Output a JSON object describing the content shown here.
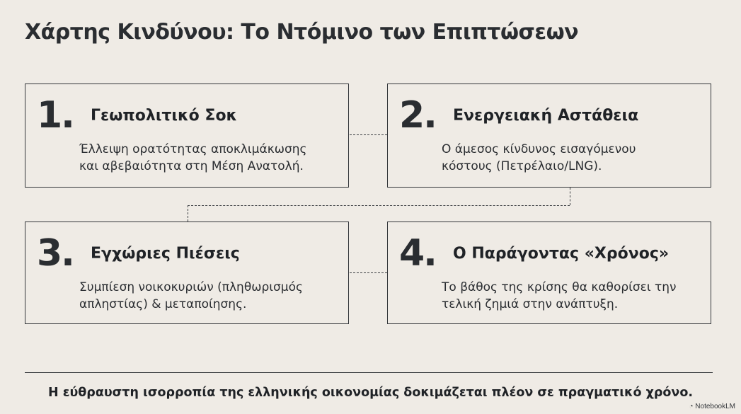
{
  "title": "Χάρτης Κινδύνου: Το Ντόμινο των Επιπτώσεων",
  "cards": [
    {
      "number": "1.",
      "heading": "Γεωπολιτικό Σοκ",
      "lines": [
        "Έλλειψη ορατότητας αποκλιμάκωσης",
        "και αβεβαιότητα στη Μέση Ανατολή."
      ]
    },
    {
      "number": "2.",
      "heading": "Ενεργειακή Αστάθεια",
      "lines": [
        "Ο άμεσος κίνδυνος εισαγόμενου",
        "κόστους (Πετρέλαιο/LNG)."
      ]
    },
    {
      "number": "3.",
      "heading": "Εγχώριες Πιέσεις",
      "lines": [
        "Συμπίεση νοικοκυριών (πληθωρισμός",
        "απληστίας) & μεταποίησης."
      ]
    },
    {
      "number": "4.",
      "heading": "Ο Παράγοντας «Χρόνος»",
      "lines": [
        "Το βάθος της κρίσης θα καθορίσει την",
        "τελική ζημιά στην ανάπτυξη."
      ]
    }
  ],
  "footer": "Η εύθραυστη ισορροπία της ελληνικής οικονομίας δοκιμάζεται πλέον σε πραγματικό χρόνο.",
  "brand": "NotebookLM",
  "colors": {
    "background": "#efebe5",
    "ink": "#2a2d31"
  }
}
